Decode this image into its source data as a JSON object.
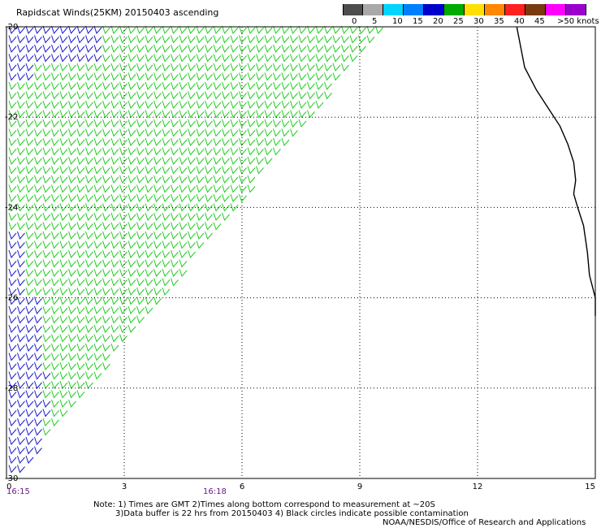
{
  "header": {
    "title": "Rapidscat Winds(25KM) 20150403 ascending"
  },
  "scale": {
    "labels": [
      "0",
      "5",
      "10",
      "15",
      "20",
      "25",
      "30",
      "35",
      "40",
      "45",
      ">50 knots"
    ],
    "colors": [
      "#4d4d4d",
      "#a9a9a9",
      "#00d4ff",
      "#007fff",
      "#0000cc",
      "#00aa00",
      "#ffe000",
      "#ff8800",
      "#ff2020",
      "#7a3a10",
      "#ff00ff",
      "#9a00cc"
    ]
  },
  "axes": {
    "y_ticks": [
      "-20",
      "-22",
      "-24",
      "-26",
      "-28",
      "-30"
    ],
    "x_ticks": [
      "0",
      "3",
      "6",
      "9",
      "12",
      "15"
    ]
  },
  "times": [
    "16:15",
    "16:18"
  ],
  "notes": {
    "line1": "Note: 1) Times are GMT 2)Times along bottom correspond to measurement at ~20S",
    "line2": "3)Data buffer is 22 hrs from 20150403 4) Black circles indicate possible contamination",
    "line3": "NOAA/NESDIS/Office of Research and Applications"
  },
  "chart_data": {
    "type": "wind-barb-map",
    "xlim": [
      0,
      15
    ],
    "ylim": [
      -30,
      -20
    ],
    "swath_edge": [
      [
        9.6,
        -20
      ],
      [
        0.2,
        -30
      ]
    ],
    "wind_colors": {
      "slow": "#1a1acc",
      "moderate": "#22cc22"
    },
    "slow_region_note": "blue barbs along west edge near 0E, especially 20S-21S and 25S-30S",
    "coastline": [
      [
        13.0,
        -20.0
      ],
      [
        13.2,
        -20.9
      ],
      [
        13.5,
        -21.4
      ],
      [
        13.8,
        -21.8
      ],
      [
        14.1,
        -22.2
      ],
      [
        14.3,
        -22.6
      ],
      [
        14.45,
        -23.0
      ],
      [
        14.5,
        -23.4
      ],
      [
        14.45,
        -23.7
      ],
      [
        14.55,
        -24.0
      ],
      [
        14.7,
        -24.4
      ],
      [
        14.8,
        -25.0
      ],
      [
        14.85,
        -25.5
      ],
      [
        15.0,
        -26.0
      ],
      [
        15.0,
        -26.4
      ]
    ]
  }
}
